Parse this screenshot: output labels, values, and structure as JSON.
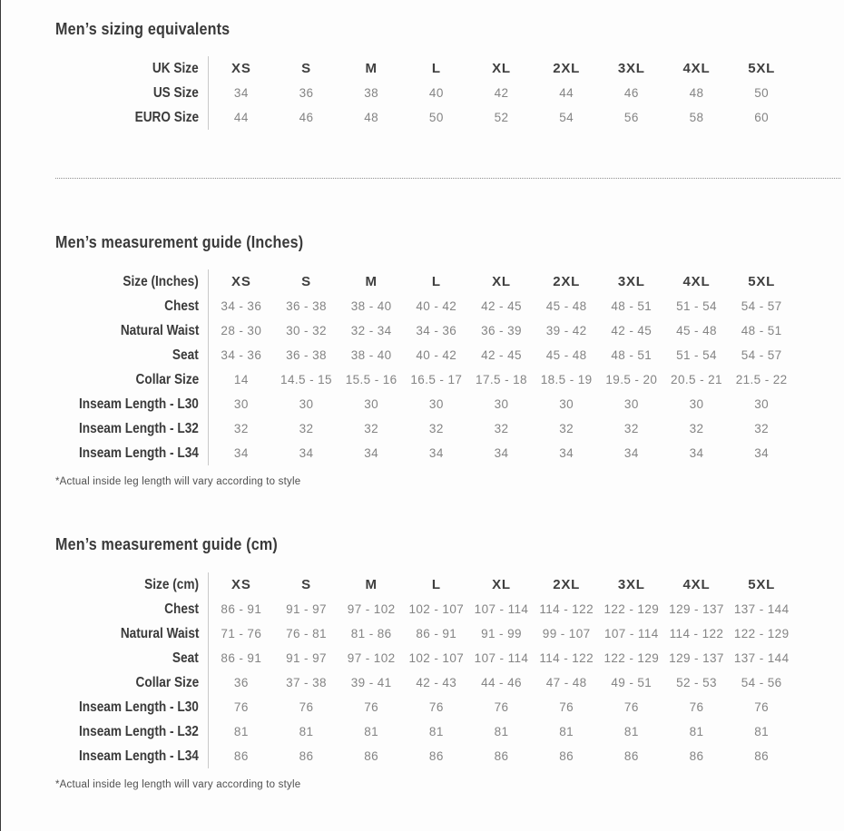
{
  "sizes": [
    "XS",
    "S",
    "M",
    "L",
    "XL",
    "2XL",
    "3XL",
    "4XL",
    "5XL"
  ],
  "equivalents": {
    "title": "Men’s sizing equivalents",
    "header_label": "UK Size",
    "rows": [
      {
        "label": "US Size",
        "values": [
          "34",
          "36",
          "38",
          "40",
          "42",
          "44",
          "46",
          "48",
          "50"
        ]
      },
      {
        "label": "EURO Size",
        "values": [
          "44",
          "46",
          "48",
          "50",
          "52",
          "54",
          "56",
          "58",
          "60"
        ]
      }
    ]
  },
  "inches": {
    "title": "Men’s measurement guide (Inches)",
    "header_label": "Size (Inches)",
    "rows": [
      {
        "label": "Chest",
        "values": [
          "34 - 36",
          "36 - 38",
          "38 - 40",
          "40 - 42",
          "42 - 45",
          "45 - 48",
          "48 - 51",
          "51 - 54",
          "54 - 57"
        ]
      },
      {
        "label": "Natural Waist",
        "values": [
          "28 - 30",
          "30 - 32",
          "32 - 34",
          "34 - 36",
          "36 - 39",
          "39 - 42",
          "42 - 45",
          "45 - 48",
          "48 - 51"
        ]
      },
      {
        "label": "Seat",
        "values": [
          "34 - 36",
          "36 - 38",
          "38 - 40",
          "40 - 42",
          "42 - 45",
          "45 - 48",
          "48 - 51",
          "51 - 54",
          "54 - 57"
        ]
      },
      {
        "label": "Collar Size",
        "values": [
          "14",
          "14.5 - 15",
          "15.5 - 16",
          "16.5 - 17",
          "17.5 - 18",
          "18.5 - 19",
          "19.5 - 20",
          "20.5 - 21",
          "21.5 - 22"
        ]
      },
      {
        "label": "Inseam Length - L30",
        "values": [
          "30",
          "30",
          "30",
          "30",
          "30",
          "30",
          "30",
          "30",
          "30"
        ]
      },
      {
        "label": "Inseam Length - L32",
        "values": [
          "32",
          "32",
          "32",
          "32",
          "32",
          "32",
          "32",
          "32",
          "32"
        ]
      },
      {
        "label": "Inseam Length - L34",
        "values": [
          "34",
          "34",
          "34",
          "34",
          "34",
          "34",
          "34",
          "34",
          "34"
        ]
      }
    ],
    "footnote": "*Actual inside leg length will vary according to style"
  },
  "cm": {
    "title": "Men’s measurement guide (cm)",
    "header_label": "Size (cm)",
    "rows": [
      {
        "label": "Chest",
        "values": [
          "86 - 91",
          "91 - 97",
          "97 - 102",
          "102 - 107",
          "107 - 114",
          "114 - 122",
          "122 - 129",
          "129 - 137",
          "137 - 144"
        ]
      },
      {
        "label": "Natural Waist",
        "values": [
          "71 - 76",
          "76 - 81",
          "81 - 86",
          "86 - 91",
          "91 - 99",
          "99 - 107",
          "107 - 114",
          "114 - 122",
          "122 - 129"
        ]
      },
      {
        "label": "Seat",
        "values": [
          "86 - 91",
          "91 - 97",
          "97 - 102",
          "102 - 107",
          "107 - 114",
          "114 - 122",
          "122 - 129",
          "129 - 137",
          "137 - 144"
        ]
      },
      {
        "label": "Collar Size",
        "values": [
          "36",
          "37 - 38",
          "39 - 41",
          "42 - 43",
          "44 - 46",
          "47 - 48",
          "49 - 51",
          "52 - 53",
          "54 - 56"
        ]
      },
      {
        "label": "Inseam Length - L30",
        "values": [
          "76",
          "76",
          "76",
          "76",
          "76",
          "76",
          "76",
          "76",
          "76"
        ]
      },
      {
        "label": "Inseam Length - L32",
        "values": [
          "81",
          "81",
          "81",
          "81",
          "81",
          "81",
          "81",
          "81",
          "81"
        ]
      },
      {
        "label": "Inseam Length - L34",
        "values": [
          "86",
          "86",
          "86",
          "86",
          "86",
          "86",
          "86",
          "86",
          "86"
        ]
      }
    ],
    "footnote": "*Actual inside leg length will vary according to style"
  },
  "colors": {
    "heading_text": "#3a3a3a",
    "value_text": "#848484",
    "divider_line": "#c9c9c9",
    "dotted_divider": "#8f8f8f",
    "background": "#fdfdfd"
  }
}
